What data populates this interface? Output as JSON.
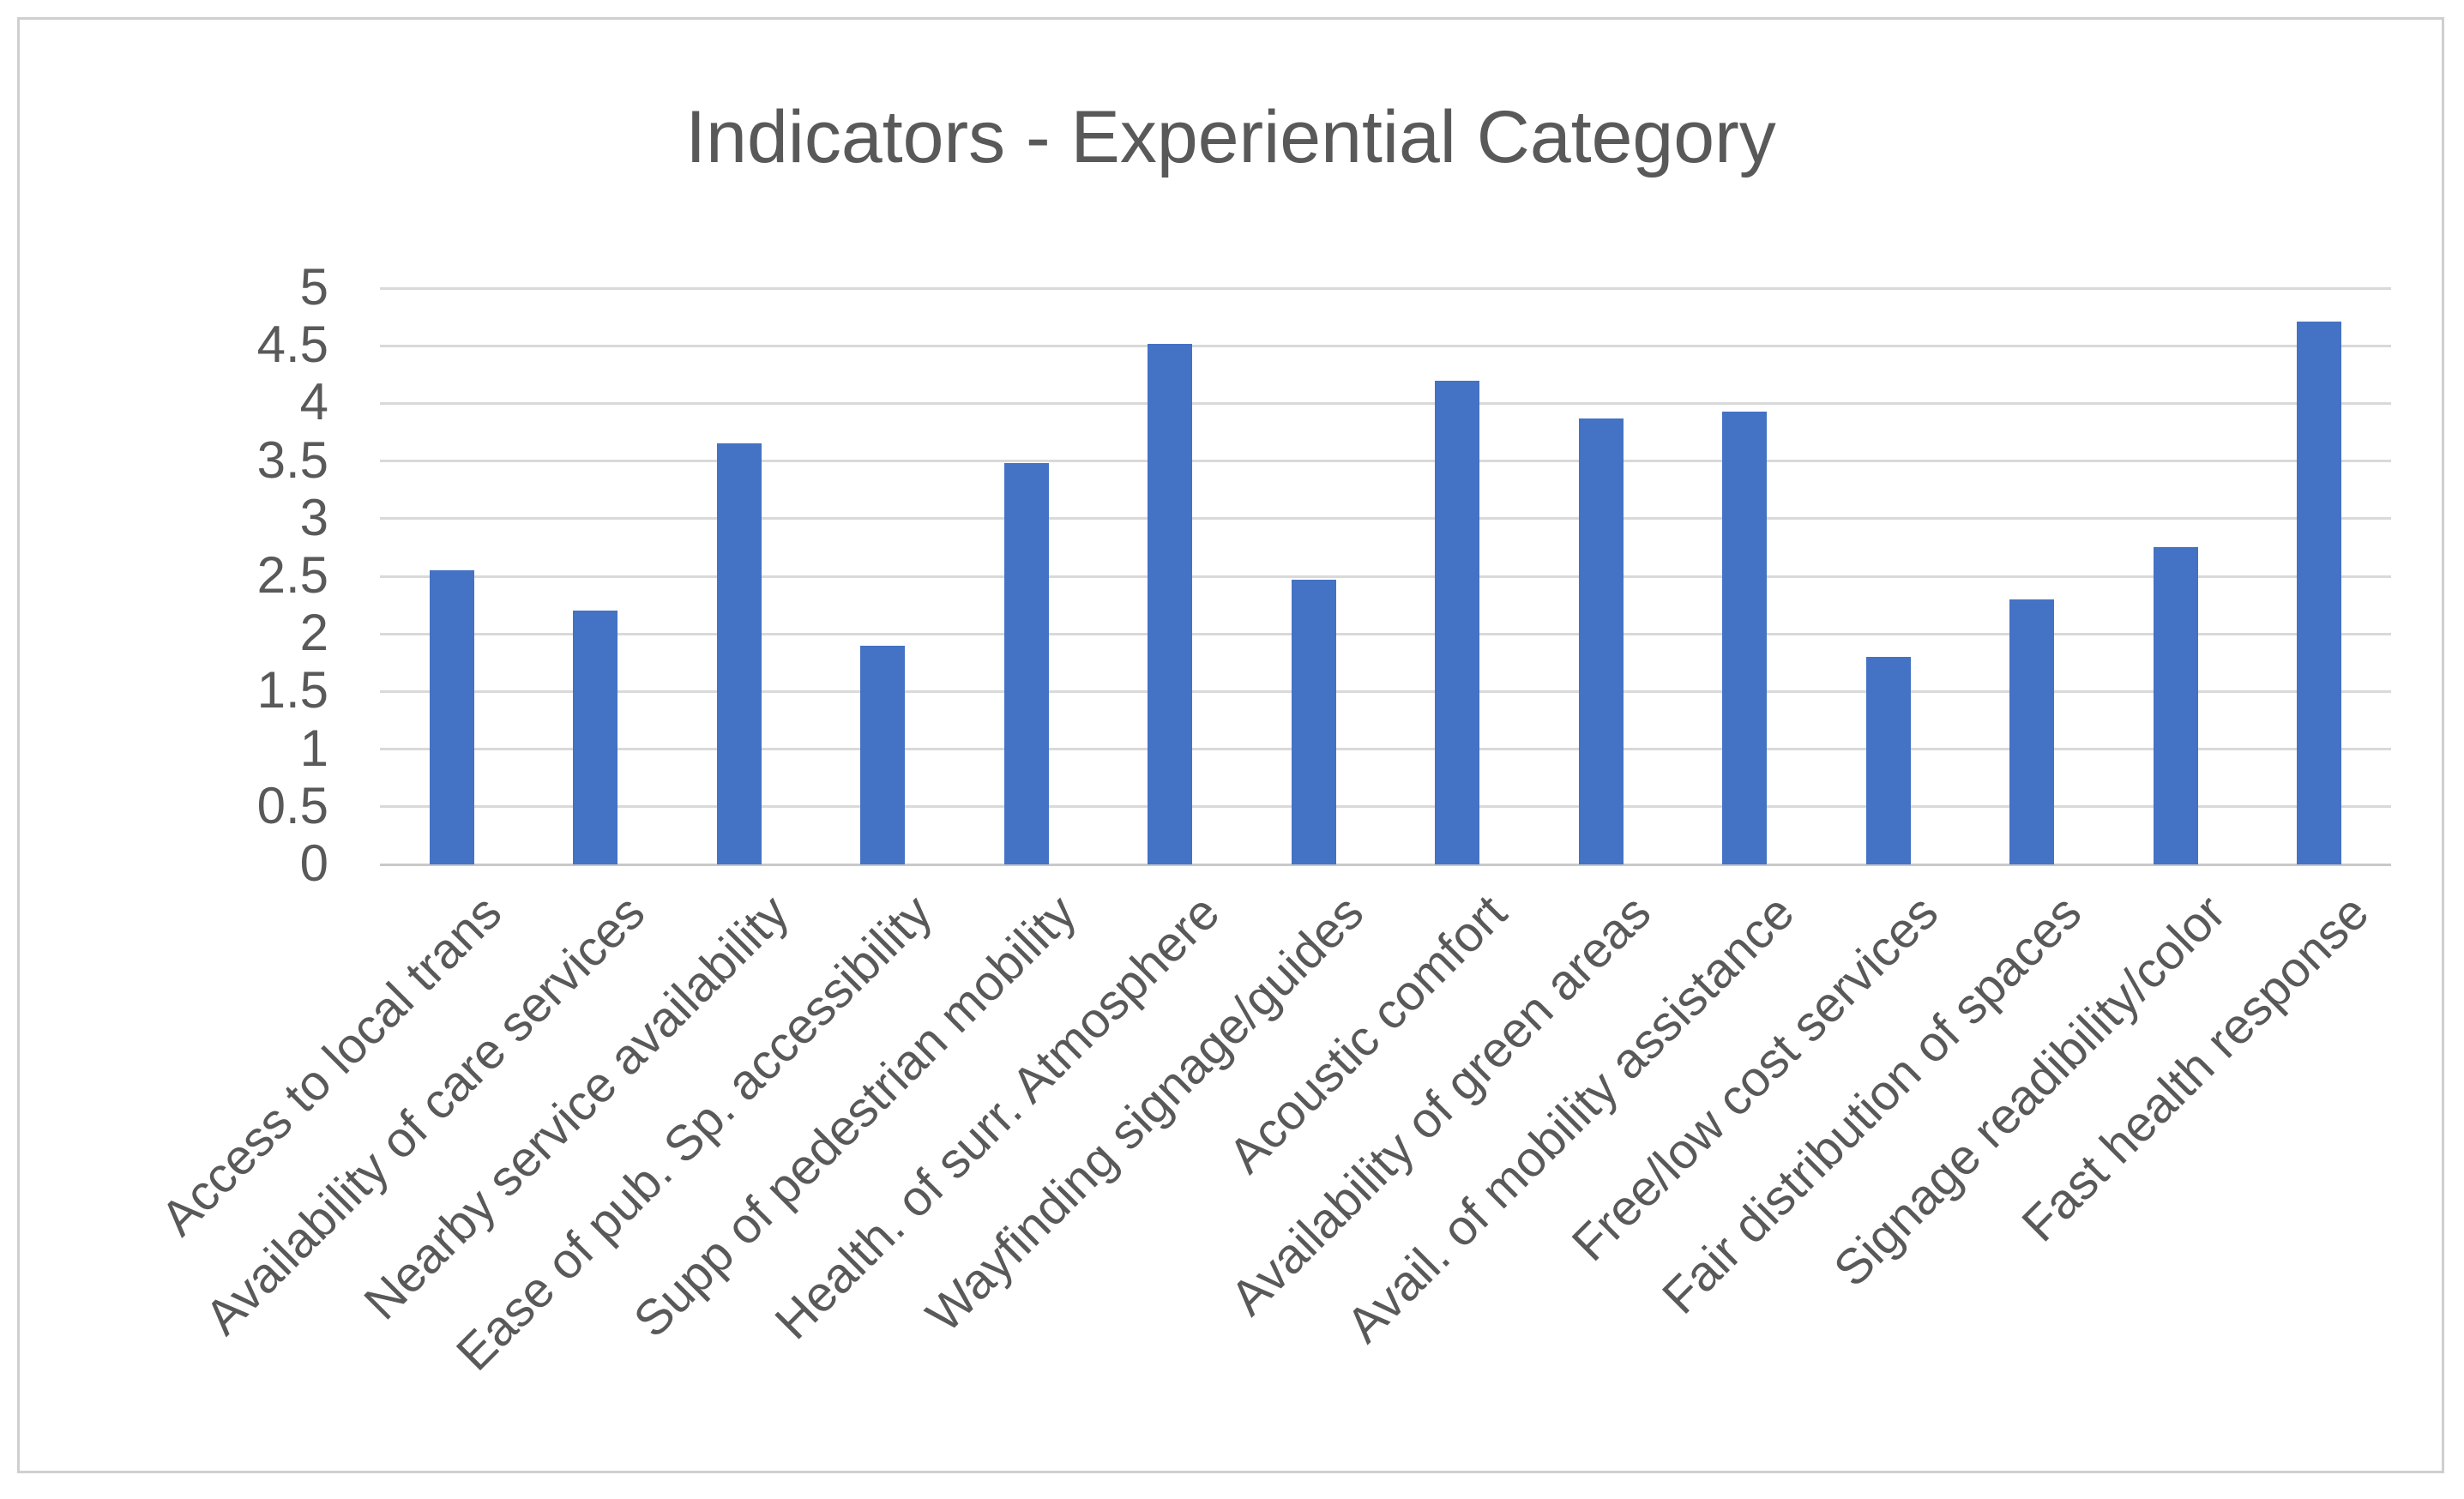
{
  "chart_data": {
    "type": "bar",
    "title": "Indicators - Experiential Category",
    "categories": [
      "Access to local trans",
      "Availability of care services",
      "Nearby service availability",
      "Ease of pub. Sp. accessibility",
      "Supp of pedestrian mobility",
      "Health. of surr. Atmosphere",
      "Wayfinding signage/guides",
      "Acoustic comfort",
      "Availability of green areas",
      "Avail. of mobility assistance",
      "Free/low cost services",
      "Fair distribution of spaces",
      "Signage readibility/color",
      "Fast health response"
    ],
    "values": [
      2.55,
      2.2,
      3.65,
      1.9,
      3.48,
      4.52,
      2.47,
      4.2,
      3.87,
      3.93,
      1.8,
      2.3,
      2.75,
      4.71
    ],
    "xlabel": "",
    "ylabel": "",
    "ylim": [
      0,
      5
    ],
    "ytick_step": 0.5,
    "ytick_labels": [
      "0",
      "0.5",
      "1",
      "1.5",
      "2",
      "2.5",
      "3",
      "3.5",
      "4",
      "4.5",
      "5"
    ],
    "grid": "horizontal-only",
    "legend": "none",
    "colors": {
      "bar": "#4472C4",
      "gridline": "#D9D9D9",
      "axis_line": "#C9C9C9",
      "text": "#595959",
      "frame_border": "#CFCFCF",
      "background": "#FFFFFF"
    }
  }
}
